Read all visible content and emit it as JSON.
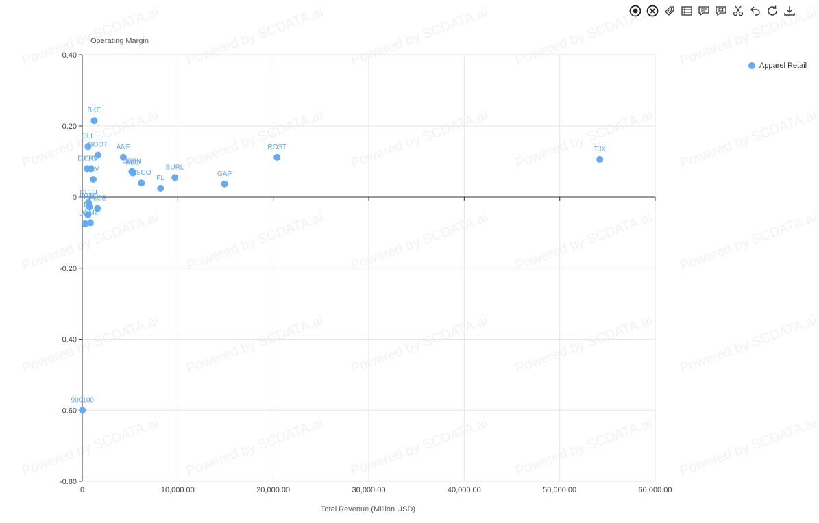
{
  "toolbar": {
    "icons": [
      "record-icon",
      "close-circle-icon",
      "tag-icon",
      "table-icon",
      "comment-icon",
      "flag-icon",
      "scissors-icon",
      "undo-icon",
      "refresh-icon",
      "download-icon"
    ]
  },
  "colors": {
    "series": "#66aaf0",
    "label": "#5aa7f0",
    "grid": "#e3e6f0",
    "axis": "#333333"
  },
  "watermark": "Powered by SCDATA.ai",
  "chart_data": {
    "type": "scatter",
    "ylabel": "Operating Margin",
    "xlabel": "Total Revenue (Million USD)",
    "xlim": [
      0,
      60000
    ],
    "ylim": [
      -0.8,
      0.4
    ],
    "x_ticks": [
      "0",
      "10,000.00",
      "20,000.00",
      "30,000.00",
      "40,000.00",
      "50,000.00",
      "60,000.00"
    ],
    "y_ticks": [
      "0.40",
      "0.20",
      "0",
      "-0.20",
      "-0.40",
      "-0.60",
      "-0.80"
    ],
    "grid": true,
    "legend_position": "top-right",
    "series": [
      {
        "name": "Apparel Retail",
        "points": [
          {
            "label": "BKE",
            "x": 1250,
            "y": 0.215
          },
          {
            "label": "JILL",
            "x": 600,
            "y": 0.142
          },
          {
            "label": "BOOT",
            "x": 1650,
            "y": 0.118
          },
          {
            "label": "ANF",
            "x": 4300,
            "y": 0.112
          },
          {
            "label": "DXLG",
            "x": 500,
            "y": 0.08
          },
          {
            "label": "CRV",
            "x": 900,
            "y": 0.08
          },
          {
            "label": "TLV",
            "x": 1150,
            "y": 0.05
          },
          {
            "label": "URBN",
            "x": 5200,
            "y": 0.072
          },
          {
            "label": "AEO",
            "x": 5300,
            "y": 0.068
          },
          {
            "label": "VSCO",
            "x": 6200,
            "y": 0.04
          },
          {
            "label": "FL",
            "x": 8200,
            "y": 0.025
          },
          {
            "label": "BURL",
            "x": 9700,
            "y": 0.055
          },
          {
            "label": "GAP",
            "x": 14900,
            "y": 0.037
          },
          {
            "label": "ROST",
            "x": 20400,
            "y": 0.112
          },
          {
            "label": "TJX",
            "x": 54200,
            "y": 0.106
          },
          {
            "label": "DLTH",
            "x": 650,
            "y": -0.015
          },
          {
            "label": "CATO",
            "x": 700,
            "y": -0.025
          },
          {
            "label": "TCS",
            "x": 750,
            "y": -0.028
          },
          {
            "label": "PLCE",
            "x": 1600,
            "y": -0.032
          },
          {
            "label": "LE",
            "x": 600,
            "y": -0.05
          },
          {
            "label": "LVV",
            "x": 300,
            "y": -0.075
          },
          {
            "label": "WMZ",
            "x": 850,
            "y": -0.072
          },
          {
            "label": "900100",
            "x": 20,
            "y": -0.6
          }
        ]
      }
    ]
  }
}
